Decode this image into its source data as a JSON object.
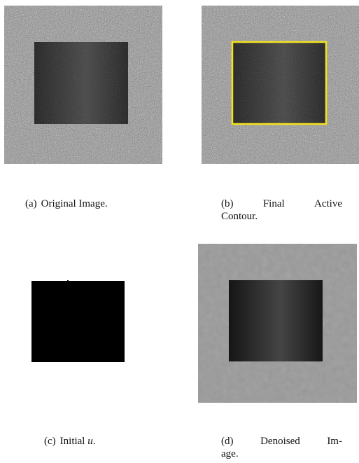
{
  "figure": {
    "panels": [
      {
        "id": "a",
        "tag": "(a)",
        "caption_text": "Original Image.",
        "content": "noisy background with dark square"
      },
      {
        "id": "b",
        "tag": "(b)",
        "caption_line1_words": [
          "Final",
          "Active"
        ],
        "caption_line2": "Contour.",
        "contour_color": "#f2e31a"
      },
      {
        "id": "c",
        "tag": "(c)",
        "caption_text": "Initial",
        "caption_math": "u",
        "caption_suffix": "."
      },
      {
        "id": "d",
        "tag": "(d)",
        "caption_line1_words": [
          "Denoised",
          "Im-"
        ],
        "caption_line2": "age."
      }
    ],
    "colors": {
      "noise_background": "#8c8c8c",
      "dark_square": "#1a1a1a",
      "denoised_background": "#9a9a9a",
      "contour": "#f2e31a"
    }
  }
}
